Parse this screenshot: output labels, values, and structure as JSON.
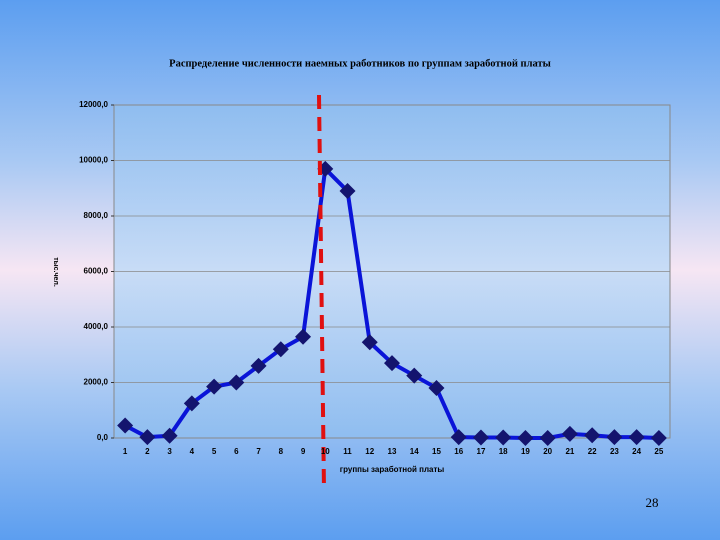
{
  "chart_data": {
    "type": "line",
    "title": "Распределение численности наемных работников по группам заработной платы",
    "y_label": "тыс.чел.",
    "x_label": "группы заработной платы",
    "categories": [
      "1",
      "2",
      "3",
      "4",
      "5",
      "6",
      "7",
      "8",
      "9",
      "10",
      "11",
      "12",
      "13",
      "14",
      "15",
      "16",
      "17",
      "18",
      "19",
      "20",
      "21",
      "22",
      "23",
      "24",
      "25"
    ],
    "series": [
      {
        "color": "#0a14d8",
        "marker_color": "#14146e",
        "values": [
          450,
          30,
          80,
          1250,
          1850,
          2000,
          2600,
          3200,
          3650,
          9700,
          8900,
          3450,
          2700,
          2250,
          1800,
          30,
          20,
          20,
          0,
          0,
          150,
          100,
          30,
          30,
          0
        ]
      }
    ],
    "ylim": [
      0,
      12000
    ],
    "yticks": [
      {
        "value": 0,
        "label": "0,0"
      },
      {
        "value": 2000,
        "label": "2000,0"
      },
      {
        "value": 4000,
        "label": "4000,0"
      },
      {
        "value": 6000,
        "label": "6000,0"
      },
      {
        "value": 8000,
        "label": "8000,0"
      },
      {
        "value": 10000,
        "label": "10000,0"
      },
      {
        "value": 12000,
        "label": "12000,0"
      }
    ],
    "grid": true
  },
  "page_number": "28"
}
